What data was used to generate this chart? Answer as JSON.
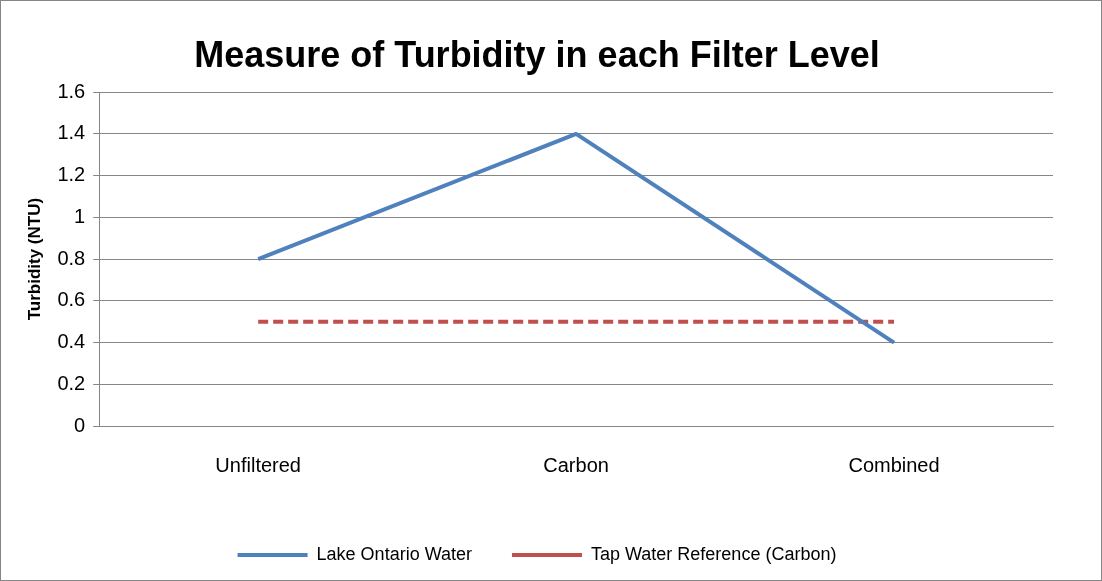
{
  "chart_data": {
    "type": "line",
    "title": "Measure of Turbidity in each Filter Level",
    "ylabel": "Turbidity (NTU)",
    "categories": [
      "Unfiltered",
      "Carbon",
      "Combined"
    ],
    "series": [
      {
        "name": "Lake Ontario Water",
        "color": "#4f81bd",
        "values": [
          0.8,
          1.4,
          0.4
        ],
        "line_style": "solid"
      },
      {
        "name": "Tap Water Reference (Carbon)",
        "color": "#c0504d",
        "values": [
          0.5,
          0.5,
          0.5
        ],
        "line_style": "dashed"
      }
    ],
    "ylim": [
      0,
      1.6
    ],
    "yticks": [
      0,
      0.2,
      0.4,
      0.6,
      0.8,
      1,
      1.2,
      1.4,
      1.6
    ],
    "grid": "y",
    "legend": "bottom",
    "marker": "none"
  }
}
